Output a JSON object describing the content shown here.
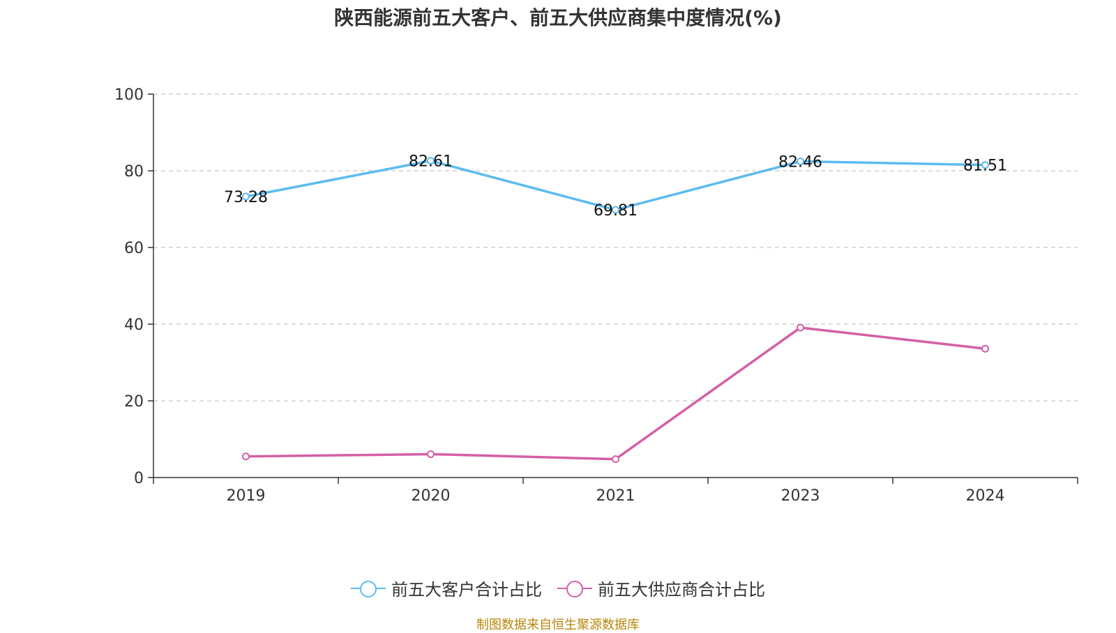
{
  "chart_data": {
    "type": "line",
    "title": "陕西能源前五大客户、前五大供应商集中度情况(%)",
    "categories": [
      "2019",
      "2020",
      "2021",
      "2023",
      "2024"
    ],
    "ylim": [
      0,
      100
    ],
    "yticks": [
      0,
      20,
      40,
      60,
      80,
      100
    ],
    "grid": true,
    "legend_position": "bottom",
    "series": [
      {
        "name": "前五大客户合计占比",
        "values": [
          73.28,
          82.61,
          69.81,
          82.46,
          81.51
        ],
        "labels": [
          "73.28",
          "82.61",
          "69.81",
          "82.46",
          "81.51"
        ],
        "show_labels": true,
        "color": "#5bbcf0"
      },
      {
        "name": "前五大供应商合计占比",
        "values": [
          5.5,
          6.1,
          4.8,
          39.1,
          33.6
        ],
        "show_labels": false,
        "color": "#d45fa6"
      }
    ]
  },
  "source": "制图数据来自恒生聚源数据库"
}
